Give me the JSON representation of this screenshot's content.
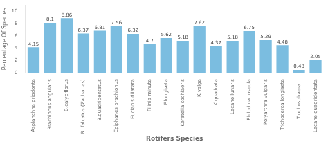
{
  "chart_data": {
    "type": "bar",
    "categories": [
      "Asplanchna priodonta",
      "Brachionus angularis",
      "B.calyciflorus",
      "B. falcatus (Zacharias)",
      "B.quadridentatus",
      "Epiphanes brachionus",
      "Euclanis dilatata",
      "Filinia minuta",
      "F.longiseta",
      "Keratella cochlaeris",
      "K.valga",
      "K.quadrata",
      "Lecane lunaris",
      "Philodina roseola",
      "Polyarthra vulgaris",
      "Trichocerca longiseta",
      "Trochosphaera...",
      "Lecane quadridentata"
    ],
    "values": [
      4.15,
      8.1,
      8.86,
      6.37,
      6.81,
      7.56,
      6.32,
      4.7,
      5.62,
      5.18,
      7.62,
      4.37,
      5.18,
      6.75,
      5.29,
      4.48,
      0.48,
      2.05
    ],
    "color": "#7bbde0",
    "xlabel": "Rotifers Species",
    "ylabel": "Percentage Of Species",
    "ylim": [
      0,
      11.0
    ],
    "yticks": [
      0,
      2,
      4,
      6,
      8,
      10
    ],
    "grid": false,
    "data_labels": true
  }
}
